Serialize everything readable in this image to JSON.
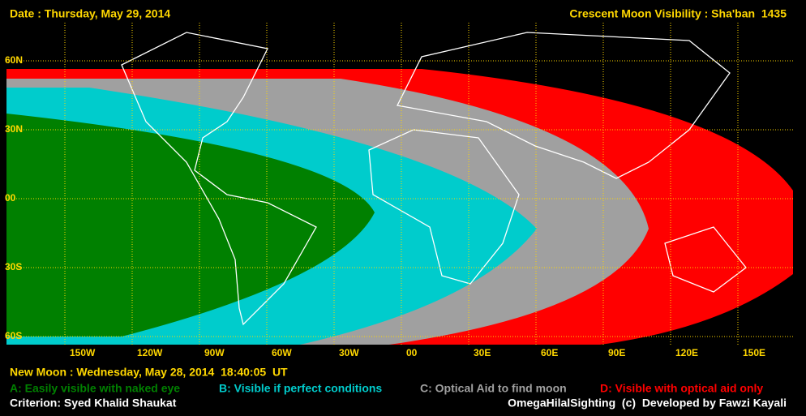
{
  "header": {
    "date": "Date : Thursday, May 29, 2014",
    "title": "Crescent Moon Visibility : Sha'ban  1435"
  },
  "map": {
    "lat_labels": [
      "60N",
      "30N",
      "00",
      "30S",
      "60S"
    ],
    "lon_labels": [
      "150W",
      "120W",
      "90W",
      "60W",
      "30W",
      "00",
      "30E",
      "60E",
      "90E",
      "120E",
      "150E"
    ]
  },
  "footer": {
    "new_moon": "New Moon : Wednesday, May 28, 2014  18:40:05  UT",
    "criterion": "Criterion: Syed Khalid Shaukat",
    "credit": "OmegaHilalSighting  (c)  Developed by Fawzi Kayali"
  },
  "legend": [
    {
      "label": "A: Easily visible with naked eye",
      "color": "#008000"
    },
    {
      "label": "B: Visible if perfect conditions",
      "color": "#00cccc"
    },
    {
      "label": "C: Optical Aid to find moon",
      "color": "#a0a0a0"
    },
    {
      "label": "D: Visible with optical aid only",
      "color": "#ff0000"
    }
  ]
}
